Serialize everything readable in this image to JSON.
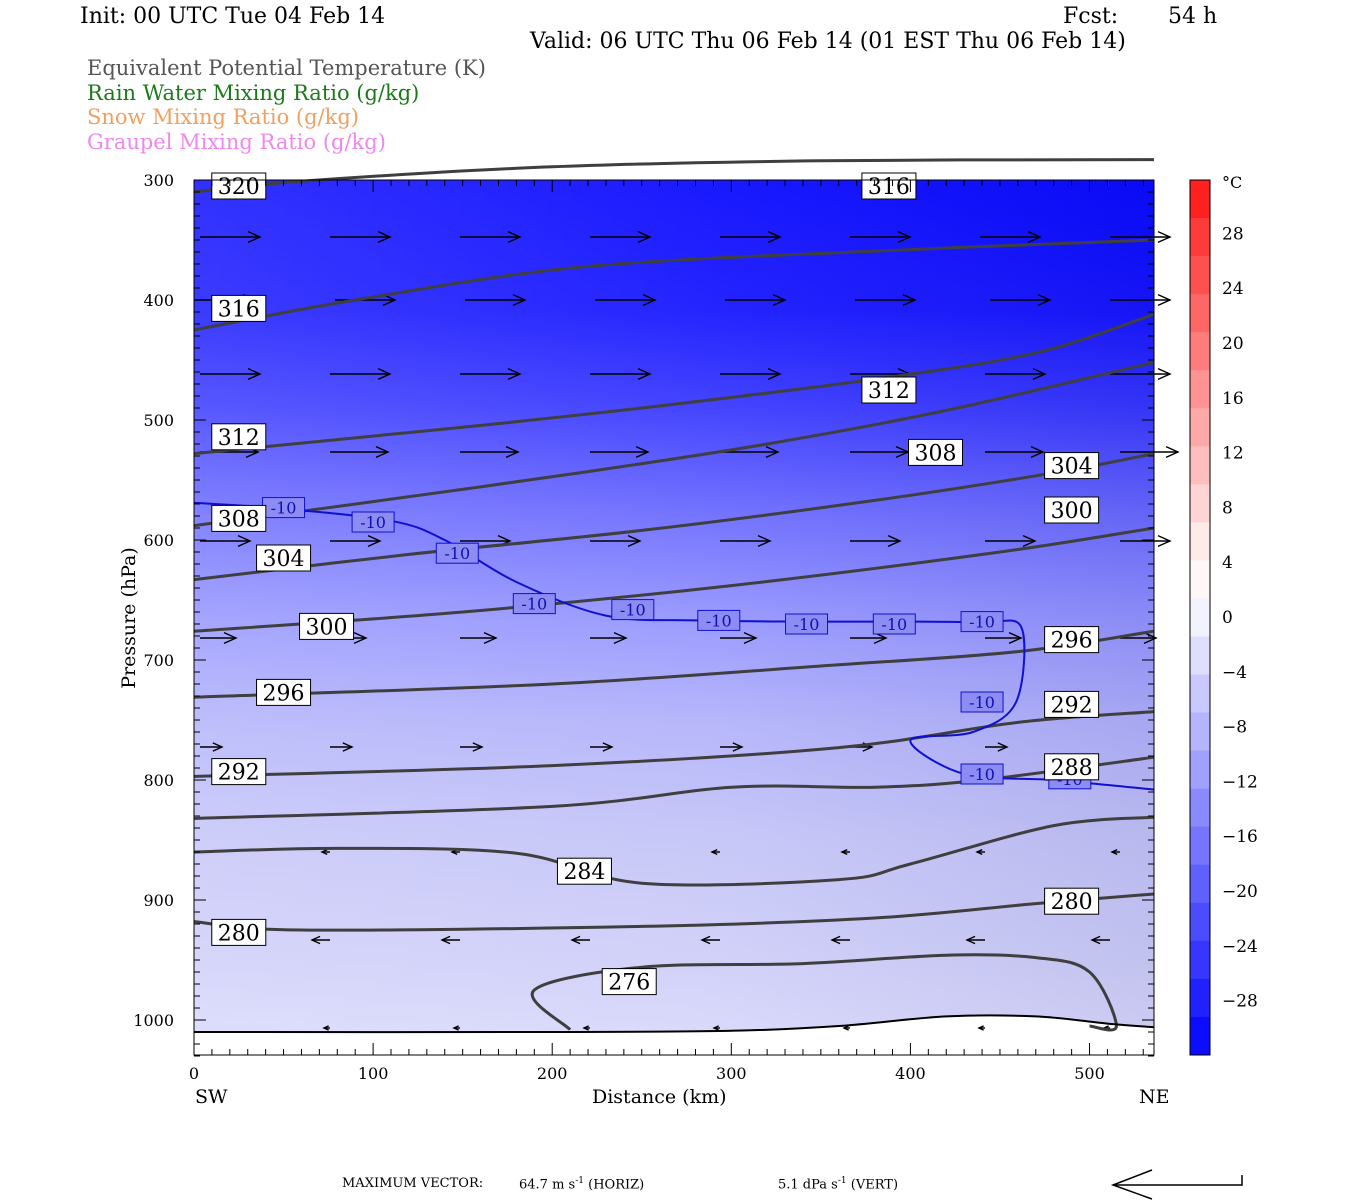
{
  "header": {
    "init": "Init: 00 UTC Tue 04 Feb 14",
    "fcst_label": "Fcst:",
    "fcst_value": "54 h",
    "valid": "Valid: 06 UTC Thu 06 Feb 14 (01 EST Thu 06 Feb 14)"
  },
  "legend": [
    {
      "label": "Equivalent Potential Temperature (K)",
      "color": "#555555"
    },
    {
      "label": "Rain Water Mixing Ratio (g/kg)",
      "color": "#1a7a1a"
    },
    {
      "label": "Snow Mixing Ratio (g/kg)",
      "color": "#f0a060"
    },
    {
      "label": "Graupel Mixing Ratio (g/kg)",
      "color": "#ee88ee"
    }
  ],
  "axes": {
    "ylabel": "Pressure (hPa)",
    "xlabel": "Distance (km)",
    "x_left_end": "SW",
    "x_right_end": "NE",
    "xlim": [
      0,
      536
    ],
    "ylim": [
      1030,
      300
    ],
    "yticks": [
      "300",
      "400",
      "500",
      "600",
      "700",
      "800",
      "900",
      "1000"
    ],
    "xticks": [
      "0",
      "100",
      "200",
      "300",
      "400",
      "500"
    ]
  },
  "colorbar": {
    "unit": "°C",
    "labels": [
      "28",
      "24",
      "20",
      "16",
      "12",
      "8",
      "4",
      "0",
      "-4",
      "-8",
      "-12",
      "-16",
      "-20",
      "-24",
      "-28"
    ],
    "colors": [
      "#ff2020",
      "#ff3a3a",
      "#ff5050",
      "#ff6666",
      "#ff7c7c",
      "#ff9292",
      "#ffa8a8",
      "#ffbebe",
      "#ffd4d4",
      "#ffeaea",
      "#fff7f7",
      "#f3f3ff",
      "#dedeff",
      "#c9c9ff",
      "#b4b4ff",
      "#a0a0ff",
      "#8a8aff",
      "#7575ff",
      "#6060ff",
      "#4b4bff",
      "#3636ff",
      "#2121ff",
      "#0c0cff"
    ]
  },
  "footer": {
    "max_vector_label": "MAXIMUM VECTOR:",
    "horiz_value": "64.7 m s",
    "horiz_exp": "-1",
    "horiz_tag": "(HORIZ)",
    "vert_value": "5.1 dPa s",
    "vert_exp": "-1",
    "vert_tag": "(VERT)"
  },
  "chart_data": {
    "type": "cross-section",
    "theta_e_contours": [
      {
        "label": "320",
        "points": [
          [
            0,
            310
          ],
          [
            60,
            301
          ],
          [
            200,
            289
          ],
          [
            350,
            284
          ],
          [
            536,
            283
          ]
        ]
      },
      {
        "label": "316",
        "points": [
          [
            0,
            425
          ],
          [
            90,
            400
          ],
          [
            220,
            372
          ],
          [
            400,
            358
          ],
          [
            536,
            350
          ]
        ]
      },
      {
        "label": "312",
        "points": [
          [
            0,
            528
          ],
          [
            150,
            506
          ],
          [
            250,
            490
          ],
          [
            380,
            466
          ],
          [
            470,
            444
          ],
          [
            536,
            412
          ]
        ]
      },
      {
        "label": "308",
        "points": [
          [
            0,
            588
          ],
          [
            100,
            568
          ],
          [
            220,
            543
          ],
          [
            320,
            520
          ],
          [
            420,
            492
          ],
          [
            536,
            452
          ]
        ]
      },
      {
        "label": "304",
        "points": [
          [
            0,
            633
          ],
          [
            120,
            612
          ],
          [
            250,
            592
          ],
          [
            380,
            567
          ],
          [
            480,
            544
          ],
          [
            536,
            528
          ]
        ]
      },
      {
        "label": "300",
        "points": [
          [
            0,
            676
          ],
          [
            150,
            660
          ],
          [
            300,
            638
          ],
          [
            450,
            610
          ],
          [
            536,
            590
          ]
        ]
      },
      {
        "label": "296",
        "points": [
          [
            0,
            731
          ],
          [
            200,
            720
          ],
          [
            350,
            705
          ],
          [
            460,
            693
          ],
          [
            536,
            676
          ]
        ]
      },
      {
        "label": "292",
        "points": [
          [
            0,
            797
          ],
          [
            200,
            788
          ],
          [
            360,
            773
          ],
          [
            460,
            752
          ],
          [
            536,
            743
          ]
        ]
      },
      {
        "label": "288",
        "points": [
          [
            0,
            832
          ],
          [
            200,
            822
          ],
          [
            300,
            806
          ],
          [
            380,
            806
          ],
          [
            440,
            800
          ],
          [
            536,
            781
          ]
        ]
      },
      {
        "label": "284",
        "points": [
          [
            0,
            860
          ],
          [
            80,
            857
          ],
          [
            180,
            861
          ],
          [
            250,
            886
          ],
          [
            360,
            883
          ],
          [
            400,
            870
          ],
          [
            480,
            838
          ],
          [
            536,
            831
          ]
        ]
      },
      {
        "label": "280",
        "points": [
          [
            0,
            918
          ],
          [
            60,
            925
          ],
          [
            250,
            922
          ],
          [
            380,
            915
          ],
          [
            470,
            903
          ],
          [
            536,
            895
          ]
        ]
      },
      {
        "label": "276",
        "points": [
          [
            210,
            1008
          ],
          [
            190,
            975
          ],
          [
            250,
            956
          ],
          [
            340,
            953
          ],
          [
            420,
            946
          ],
          [
            470,
            948
          ],
          [
            500,
            960
          ],
          [
            515,
            1005
          ],
          [
            500,
            1005
          ]
        ]
      }
    ],
    "temperature_contour": {
      "label": "-10",
      "points": [
        [
          0,
          569
        ],
        [
          50,
          574
        ],
        [
          110,
          584
        ],
        [
          140,
          600
        ],
        [
          180,
          635
        ],
        [
          230,
          663
        ],
        [
          280,
          667
        ],
        [
          340,
          668
        ],
        [
          400,
          668
        ],
        [
          440,
          669
        ],
        [
          462,
          673
        ],
        [
          459,
          735
        ],
        [
          435,
          760
        ],
        [
          400,
          767
        ],
        [
          430,
          795
        ],
        [
          480,
          800
        ],
        [
          536,
          808
        ]
      ]
    },
    "temp_labels": [
      [
        50,
        573
      ],
      [
        100,
        585
      ],
      [
        147,
        611
      ],
      [
        190,
        653
      ],
      [
        245,
        658
      ],
      [
        293,
        667
      ],
      [
        342,
        670
      ],
      [
        391,
        670
      ],
      [
        440,
        668
      ],
      [
        440,
        735
      ],
      [
        440,
        795
      ],
      [
        489,
        799
      ]
    ],
    "surface_line": [
      [
        0,
        1010
      ],
      [
        200,
        1010
      ],
      [
        300,
        1009
      ],
      [
        360,
        1005
      ],
      [
        420,
        997
      ],
      [
        470,
        997
      ],
      [
        510,
        1003
      ],
      [
        536,
        1006
      ]
    ]
  }
}
